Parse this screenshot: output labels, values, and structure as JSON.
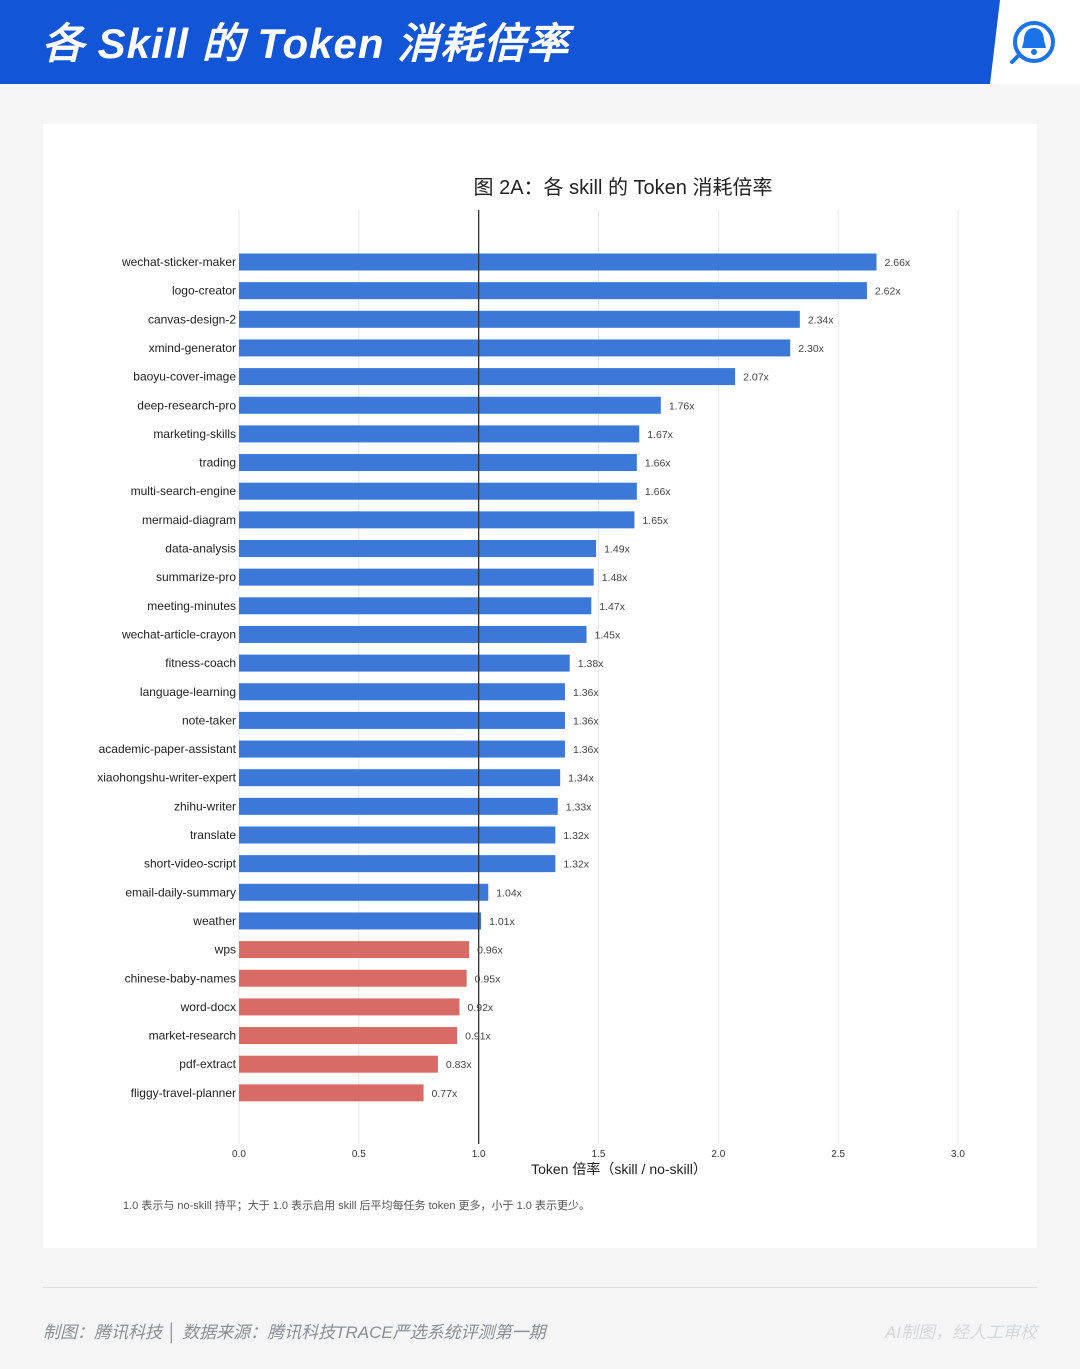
{
  "header": {
    "title": "各 Skill 的 Token 消耗倍率",
    "logo_icon": "tencent-news-logo-icon"
  },
  "colors": {
    "header_blue": "#1255d6",
    "bar_above": "#3b78d8",
    "bar_below": "#d96b67",
    "reference_line": "#333333",
    "grid": "#e6e6e6"
  },
  "chart_data": {
    "type": "bar",
    "orientation": "horizontal",
    "title": "图 2A：各 skill 的 Token 消耗倍率",
    "xlabel": "Token 倍率（skill / no-skill）",
    "ylabel": "",
    "xlim": [
      0,
      3.0
    ],
    "xticks": [
      "0.0",
      "0.5",
      "1.0",
      "1.5",
      "2.0",
      "2.5",
      "3.0"
    ],
    "reference_line": 1.0,
    "grid": "vertical",
    "label_suffix": "x",
    "categories": [
      "wechat-sticker-maker",
      "logo-creator",
      "canvas-design-2",
      "xmind-generator",
      "baoyu-cover-image",
      "deep-research-pro",
      "marketing-skills",
      "trading",
      "multi-search-engine",
      "mermaid-diagram",
      "data-analysis",
      "summarize-pro",
      "meeting-minutes",
      "wechat-article-crayon",
      "fitness-coach",
      "language-learning",
      "note-taker",
      "academic-paper-assistant",
      "xiaohongshu-writer-expert",
      "zhihu-writer",
      "translate",
      "short-video-script",
      "email-daily-summary",
      "weather",
      "wps",
      "chinese-baby-names",
      "word-docx",
      "market-research",
      "pdf-extract",
      "fliggy-travel-planner"
    ],
    "values": [
      2.66,
      2.62,
      2.34,
      2.3,
      2.07,
      1.76,
      1.67,
      1.66,
      1.66,
      1.65,
      1.49,
      1.48,
      1.47,
      1.45,
      1.38,
      1.36,
      1.36,
      1.36,
      1.34,
      1.33,
      1.32,
      1.32,
      1.04,
      1.01,
      0.96,
      0.95,
      0.92,
      0.91,
      0.83,
      0.77
    ],
    "note": "1.0 表示与 no-skill 持平；大于 1.0 表示启用 skill 后平均每任务 token 更多，小于 1.0 表示更少。"
  },
  "footer": {
    "credit": "制图：腾讯科技 │ 数据来源：腾讯科技TRACE严选系统评测第一期",
    "disclaimer": "AI制图，经人工审校"
  }
}
